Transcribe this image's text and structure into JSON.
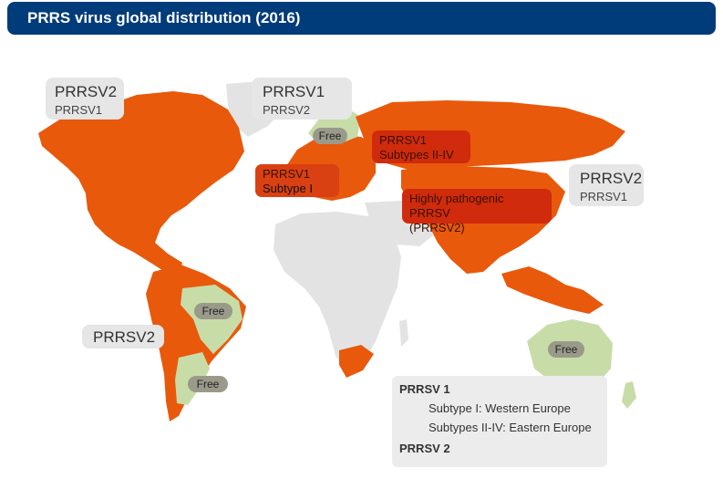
{
  "title": "PRRS virus global distribution (2016)",
  "callouts": {
    "north_america": {
      "primary": "PRRSV2",
      "secondary": "PRRSV1"
    },
    "europe": {
      "primary": "PRRSV1",
      "secondary": "PRRSV2"
    },
    "asia": {
      "primary": "PRRSV2",
      "secondary": "PRRSV1"
    },
    "south_america": {
      "primary": "PRRSV2"
    }
  },
  "region_labels": {
    "western_europe": {
      "line1": "PRRSV1",
      "line2": "Subtype I"
    },
    "eastern_europe": {
      "line1": "PRRSV1",
      "line2": "Subtypes II-IV"
    },
    "asia_hp": {
      "line1": "Highly pathogenic PRRSV",
      "line2": "(PRRSV2)"
    }
  },
  "free_labels": {
    "scandinavia": "Free",
    "brazil": "Free",
    "argentina": "Free",
    "australia": "Free"
  },
  "legend": {
    "heading1": "PRRSV 1",
    "item1": "Subtype I: Western Europe",
    "item2": "Subtypes II-IV: Eastern Europe",
    "heading2": "PRRSV 2"
  },
  "colors": {
    "header_bg": "#003b7a",
    "present": "#e8590c",
    "free": "#c8dca8",
    "no_data": "#e3e3e3",
    "highlight": "#d42a0a"
  }
}
